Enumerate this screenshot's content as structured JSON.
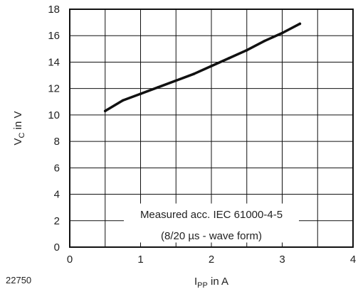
{
  "figure_id": "22750",
  "chart_data": {
    "type": "line",
    "xlabel": {
      "main": "I",
      "sub": "PP",
      "suffix": " in A"
    },
    "ylabel": {
      "main": "V",
      "sub": "C",
      "suffix": " in V"
    },
    "xlim": [
      0,
      4
    ],
    "ylim": [
      0,
      18
    ],
    "x_ticks": [
      0,
      1,
      2,
      3,
      4
    ],
    "y_ticks": [
      0,
      2,
      4,
      6,
      8,
      10,
      12,
      14,
      16,
      18
    ],
    "x_grid_step": 0.5,
    "y_grid_step": 2,
    "grid": true,
    "annotation": {
      "line1": "Measured acc. IEC 61000-4-5",
      "line2": "(8/20 µs - wave form)",
      "position": "bottom-center"
    },
    "series": [
      {
        "color": "#111111",
        "x": [
          0.5,
          0.75,
          1.0,
          1.25,
          1.5,
          1.75,
          2.0,
          2.25,
          2.5,
          2.75,
          3.0,
          3.25
        ],
        "y": [
          10.3,
          11.1,
          11.6,
          12.1,
          12.6,
          13.1,
          13.7,
          14.3,
          14.9,
          15.6,
          16.2,
          16.9
        ]
      }
    ]
  }
}
